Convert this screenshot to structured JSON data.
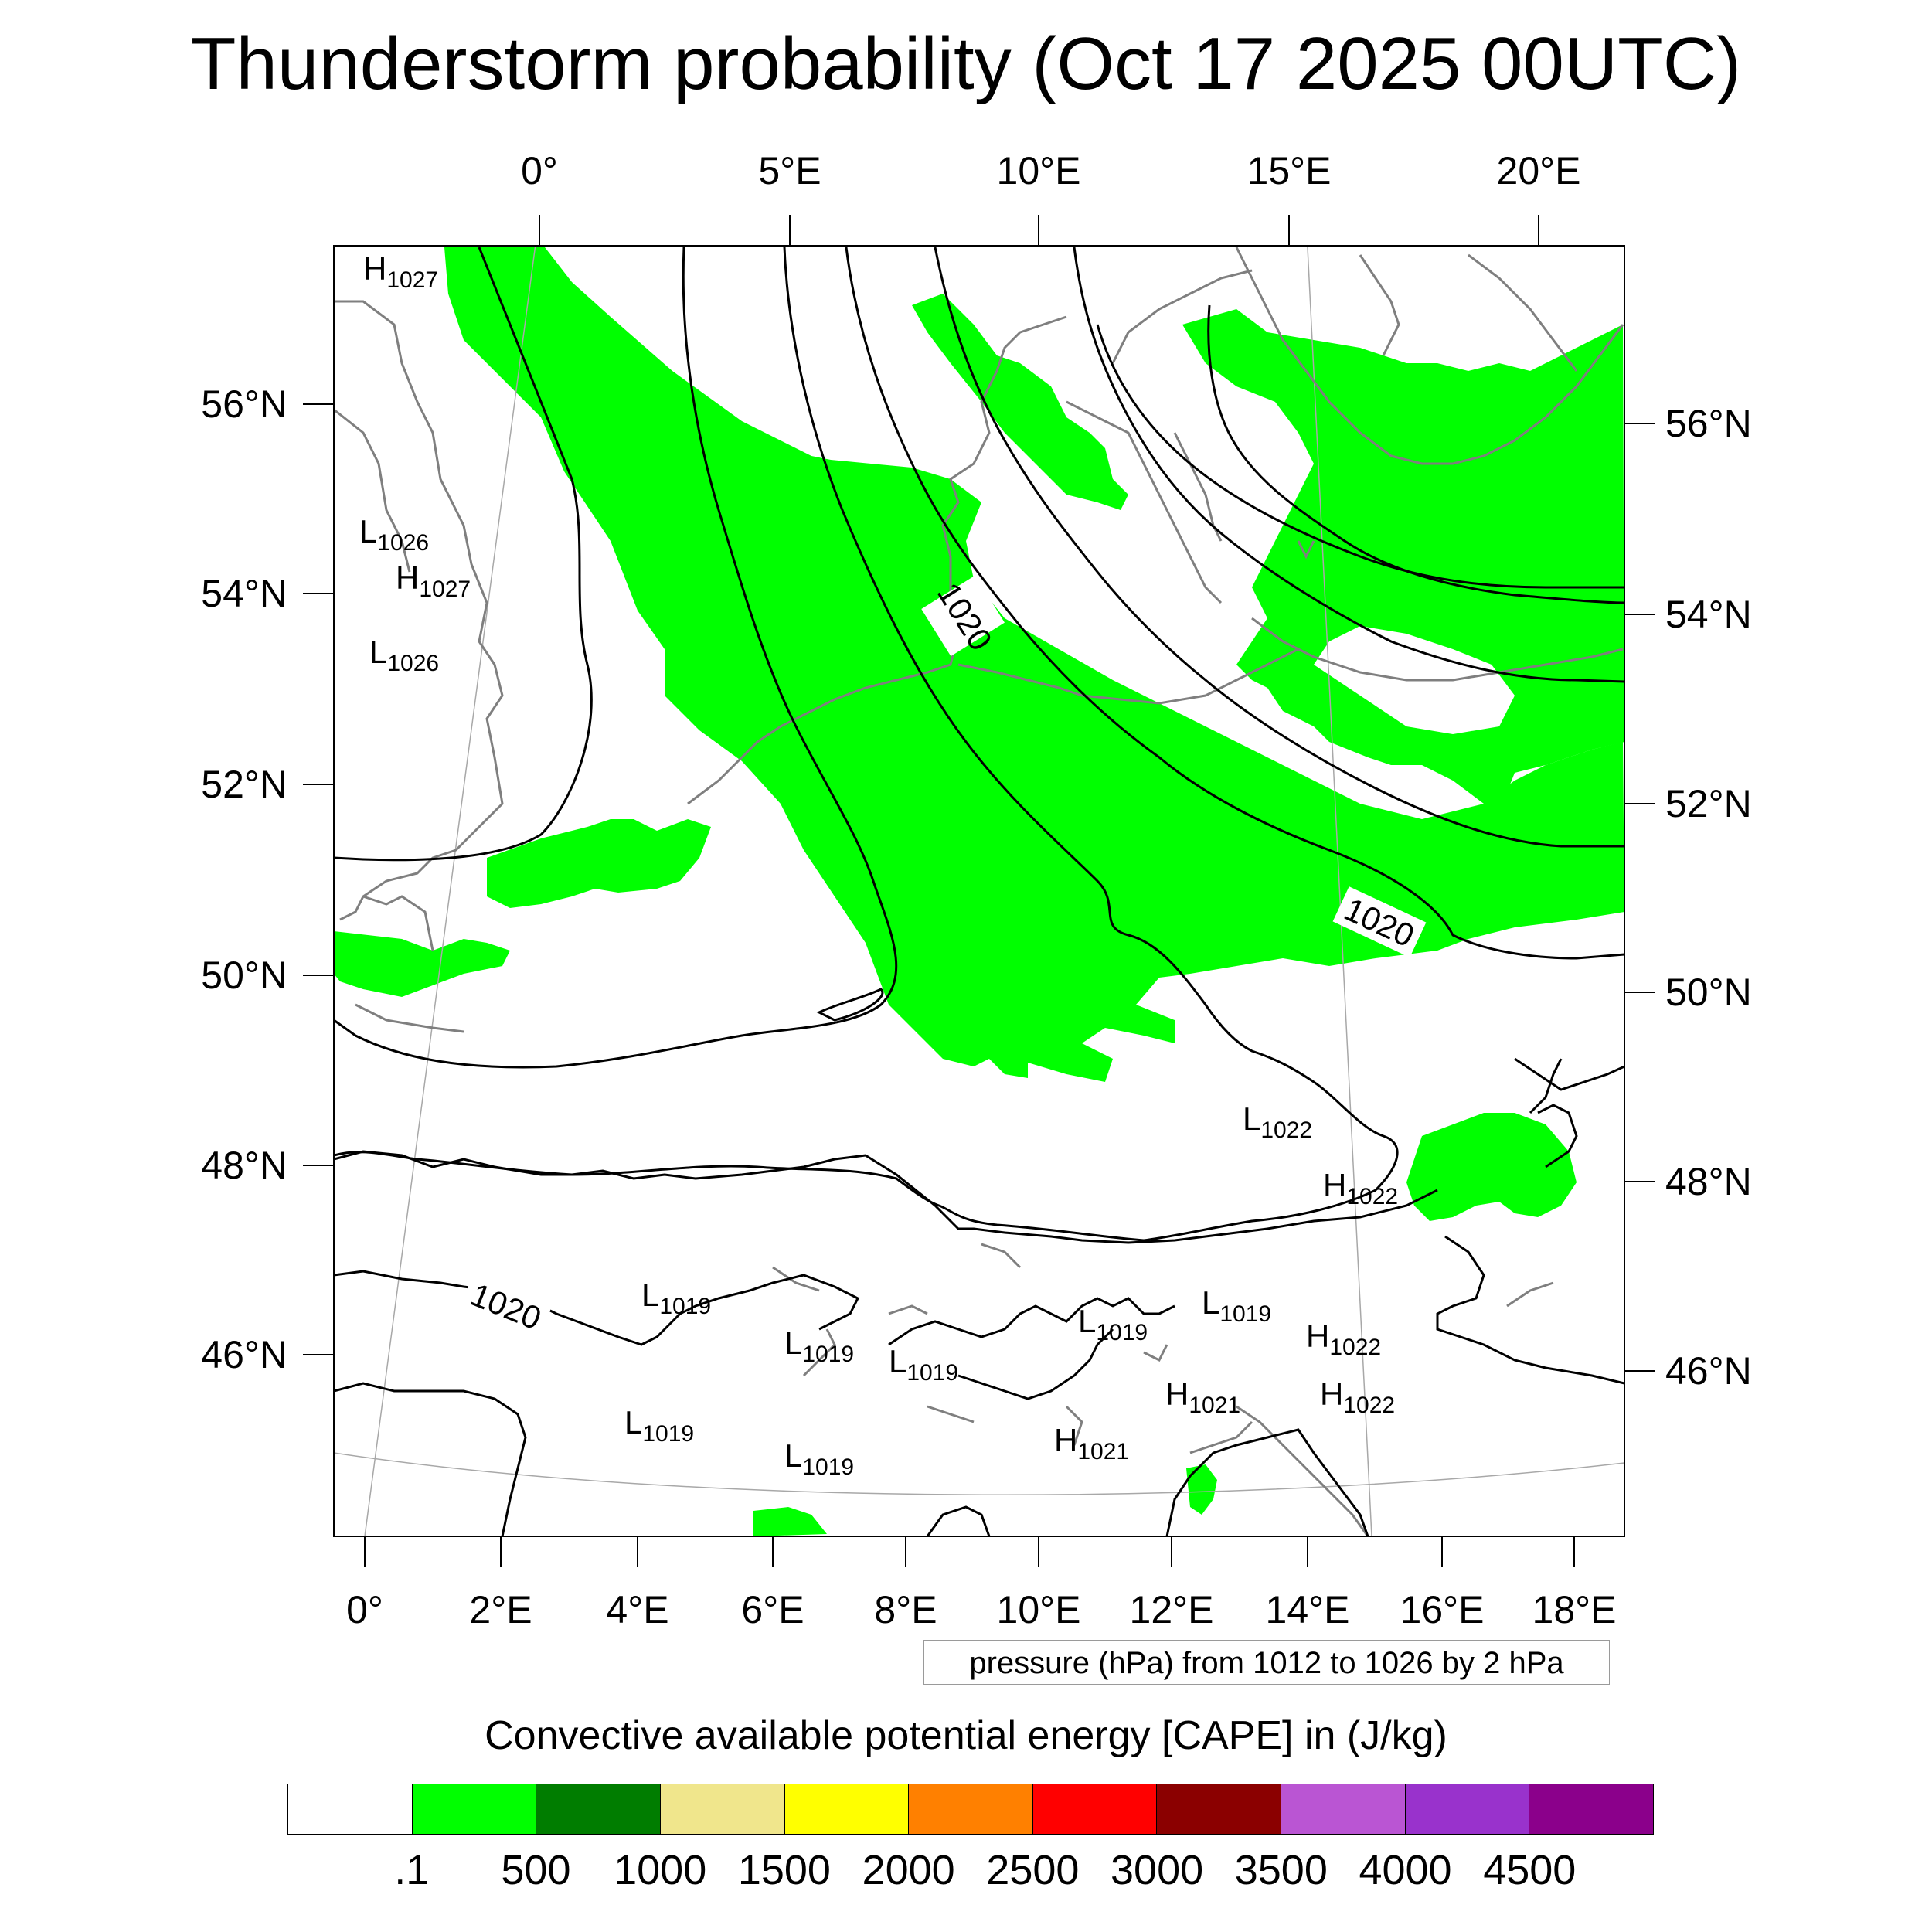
{
  "title": "Thunderstorm probability (Oct 17 2025 00UTC)",
  "map": {
    "top_lon_labels": [
      "0°",
      "5°E",
      "10°E",
      "15°E",
      "20°E"
    ],
    "bottom_lon_labels": [
      "0°",
      "2°E",
      "4°E",
      "6°E",
      "8°E",
      "10°E",
      "12°E",
      "14°E",
      "16°E",
      "18°E"
    ],
    "left_lat_labels": [
      "56°N",
      "54°N",
      "52°N",
      "50°N",
      "48°N",
      "46°N"
    ],
    "right_lat_labels": [
      "56°N",
      "54°N",
      "52°N",
      "50°N",
      "48°N",
      "46°N"
    ],
    "isobar_labels": [
      "1020",
      "1020",
      "1020"
    ],
    "pressure_centers": [
      {
        "type": "H",
        "value": "1027"
      },
      {
        "type": "L",
        "value": "1026"
      },
      {
        "type": "H",
        "value": "1027"
      },
      {
        "type": "L",
        "value": "1026"
      },
      {
        "type": "L",
        "value": "1022"
      },
      {
        "type": "H",
        "value": "1022"
      },
      {
        "type": "L",
        "value": "1019"
      },
      {
        "type": "L",
        "value": "1019"
      },
      {
        "type": "L",
        "value": "1019"
      },
      {
        "type": "L",
        "value": "1019"
      },
      {
        "type": "L",
        "value": "1019"
      },
      {
        "type": "L",
        "value": "1019"
      },
      {
        "type": "L",
        "value": "1019"
      },
      {
        "type": "H",
        "value": "1022"
      },
      {
        "type": "H",
        "value": "1021"
      },
      {
        "type": "H",
        "value": "1022"
      },
      {
        "type": "H",
        "value": "1021"
      }
    ],
    "cape_fill_color": "#00ff00",
    "isobar_color": "#000000",
    "coastline_color": "#808080"
  },
  "pressure_note": "pressure (hPa) from 1012 to 1026 by 2 hPa",
  "legend": {
    "title": "Convective available potential energy [CAPE] in (J/kg)",
    "colors": [
      "#ffffff",
      "#00ff00",
      "#007d00",
      "#f0e68c",
      "#ffff00",
      "#ff8000",
      "#ff0000",
      "#8b0000",
      "#ba55d3",
      "#9932cc",
      "#8b008b"
    ],
    "labels": [
      ".1",
      "500",
      "1000",
      "1500",
      "2000",
      "2500",
      "3000",
      "3500",
      "4000",
      "4500"
    ]
  }
}
